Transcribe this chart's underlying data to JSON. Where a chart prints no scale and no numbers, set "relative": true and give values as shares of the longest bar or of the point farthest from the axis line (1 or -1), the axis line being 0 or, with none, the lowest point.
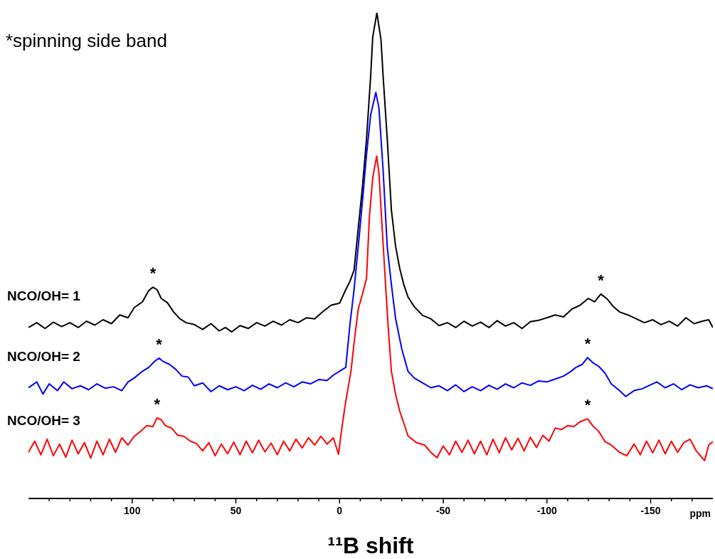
{
  "chart_data": {
    "type": "line",
    "relative": true,
    "xlabel": "¹¹B shift",
    "xlim": [
      150,
      -180
    ],
    "xticks": [
      {
        "value": 140,
        "label": null
      },
      {
        "value": 130,
        "label": null
      },
      {
        "value": 120,
        "label": null
      },
      {
        "value": 110,
        "label": null
      },
      100,
      {
        "value": 90,
        "label": null
      },
      {
        "value": 80,
        "label": null
      },
      {
        "value": 70,
        "label": null
      },
      {
        "value": 60,
        "label": null
      },
      50,
      {
        "value": 40,
        "label": null
      },
      {
        "value": 30,
        "label": null
      },
      {
        "value": 20,
        "label": null
      },
      {
        "value": 10,
        "label": null
      },
      0,
      {
        "value": -10,
        "label": null
      },
      {
        "value": -20,
        "label": null
      },
      {
        "value": -30,
        "label": null
      },
      {
        "value": -40,
        "label": null
      },
      -50,
      {
        "value": -60,
        "label": null
      },
      {
        "value": -70,
        "label": null
      },
      {
        "value": -80,
        "label": null
      },
      {
        "value": -90,
        "label": null
      },
      -100,
      {
        "value": -110,
        "label": null
      },
      {
        "value": -120,
        "label": null
      },
      {
        "value": -130,
        "label": null
      },
      {
        "value": -140,
        "label": null
      },
      -150,
      {
        "value": -160,
        "label": null
      },
      {
        "value": -170,
        "label": null
      }
    ],
    "annotations": [
      "*spinning side band",
      "ppm",
      {
        "text": "*",
        "x": 90,
        "y": 0.435
      },
      {
        "text": "*",
        "x": -126,
        "y": 0.421
      },
      {
        "text": "*",
        "x": 87,
        "y": 0.289
      },
      {
        "text": "*",
        "x": -119.6,
        "y": 0.29
      },
      {
        "text": "*",
        "x": 88,
        "y": 0.166
      },
      {
        "text": "*",
        "x": -119.6,
        "y": 0.164
      }
    ],
    "series": [
      {
        "name": "NCO/OH= 1",
        "color": "#000000",
        "x": [
          150,
          146,
          142,
          138,
          134,
          130,
          126,
          122,
          118,
          114,
          110,
          106,
          102,
          99,
          95,
          92,
          90,
          88,
          86,
          83,
          80,
          77,
          74,
          70,
          66,
          62,
          58,
          55,
          52,
          48,
          44,
          40,
          36,
          32,
          28,
          24,
          20,
          16,
          12,
          8,
          4,
          0,
          -3,
          -5,
          -7,
          -9,
          -11,
          -13,
          -15,
          -16,
          -18,
          -20,
          -21,
          -23,
          -25,
          -27,
          -29,
          -31,
          -33,
          -36,
          -40,
          -44,
          -48,
          -52,
          -56,
          -60,
          -64,
          -68,
          -72,
          -76,
          -80,
          -84,
          -88,
          -92,
          -96,
          -100,
          -104,
          -108,
          -112,
          -116,
          -120,
          -123,
          -126,
          -129,
          -132,
          -135,
          -139,
          -143,
          -147,
          -151,
          -155,
          -159,
          -163,
          -167,
          -171,
          -175,
          -178,
          -180
        ],
        "values": [
          0.352,
          0.362,
          0.35,
          0.363,
          0.354,
          0.362,
          0.352,
          0.365,
          0.357,
          0.368,
          0.36,
          0.378,
          0.372,
          0.393,
          0.405,
          0.428,
          0.435,
          0.43,
          0.412,
          0.403,
          0.384,
          0.37,
          0.362,
          0.358,
          0.348,
          0.36,
          0.345,
          0.352,
          0.343,
          0.356,
          0.35,
          0.362,
          0.355,
          0.365,
          0.357,
          0.368,
          0.362,
          0.372,
          0.37,
          0.385,
          0.398,
          0.402,
          0.43,
          0.447,
          0.47,
          0.556,
          0.64,
          0.74,
          0.87,
          0.95,
          1.0,
          0.944,
          0.87,
          0.74,
          0.594,
          0.52,
          0.474,
          0.44,
          0.415,
          0.395,
          0.377,
          0.37,
          0.356,
          0.362,
          0.352,
          0.365,
          0.355,
          0.363,
          0.352,
          0.366,
          0.355,
          0.362,
          0.35,
          0.364,
          0.367,
          0.372,
          0.378,
          0.374,
          0.39,
          0.398,
          0.412,
          0.405,
          0.421,
          0.411,
          0.395,
          0.384,
          0.378,
          0.37,
          0.362,
          0.368,
          0.358,
          0.365,
          0.355,
          0.372,
          0.36,
          0.365,
          0.368,
          0.352
        ]
      },
      {
        "name": "NCO/OH= 2",
        "color": "#0000ff",
        "x": [
          150,
          146,
          143,
          140,
          136,
          133,
          129,
          125,
          121,
          117,
          113,
          109,
          105,
          102,
          99,
          95,
          92,
          89,
          87,
          85,
          82,
          79,
          76,
          73,
          70,
          66,
          62,
          58,
          54,
          50,
          46,
          42,
          38,
          34,
          30,
          26,
          22,
          18,
          14,
          10,
          6,
          3,
          0,
          -3,
          -5,
          -7,
          -9,
          -11,
          -13,
          -15,
          -17.5,
          -19,
          -21,
          -23,
          -25,
          -27,
          -30,
          -33,
          -36,
          -40,
          -44,
          -48,
          -52,
          -56,
          -60,
          -64,
          -68,
          -72,
          -76,
          -80,
          -84,
          -88,
          -92,
          -96,
          -100,
          -104,
          -108,
          -111,
          -114,
          -117,
          -119.6,
          -122,
          -125,
          -128,
          -131,
          -135,
          -138,
          -142,
          -146,
          -150,
          -153,
          -157,
          -161,
          -165,
          -169,
          -173,
          -177,
          -180
        ],
        "values": [
          0.228,
          0.24,
          0.215,
          0.236,
          0.222,
          0.24,
          0.226,
          0.232,
          0.224,
          0.236,
          0.227,
          0.23,
          0.222,
          0.24,
          0.248,
          0.262,
          0.27,
          0.283,
          0.289,
          0.282,
          0.276,
          0.266,
          0.252,
          0.25,
          0.232,
          0.238,
          0.22,
          0.232,
          0.224,
          0.23,
          0.222,
          0.233,
          0.225,
          0.236,
          0.228,
          0.238,
          0.23,
          0.24,
          0.236,
          0.245,
          0.243,
          0.254,
          0.262,
          0.27,
          0.358,
          0.43,
          0.518,
          0.61,
          0.708,
          0.79,
          0.836,
          0.804,
          0.676,
          0.518,
          0.44,
          0.371,
          0.308,
          0.262,
          0.248,
          0.238,
          0.228,
          0.232,
          0.222,
          0.234,
          0.22,
          0.23,
          0.222,
          0.233,
          0.225,
          0.236,
          0.228,
          0.238,
          0.233,
          0.242,
          0.24,
          0.246,
          0.252,
          0.26,
          0.27,
          0.276,
          0.29,
          0.28,
          0.272,
          0.258,
          0.236,
          0.222,
          0.21,
          0.222,
          0.226,
          0.234,
          0.24,
          0.228,
          0.236,
          0.224,
          0.234,
          0.228,
          0.232,
          0.226
        ]
      },
      {
        "name": "NCO/OH= 3",
        "color": "#ff0000",
        "x": [
          150,
          147,
          144,
          141,
          138,
          135,
          132,
          129,
          126,
          123,
          120,
          117,
          114,
          111,
          108,
          105,
          102,
          99,
          96,
          93,
          90,
          88,
          86,
          84,
          81,
          78,
          75,
          72,
          69,
          66,
          63,
          60,
          57,
          54,
          51,
          48,
          45,
          42,
          39,
          36,
          33,
          30,
          27,
          24,
          21,
          18,
          15,
          12,
          9,
          6,
          3,
          0.5,
          -1,
          -3,
          -5.5,
          -7,
          -9,
          -11,
          -13,
          -14.4,
          -16,
          -17.9,
          -19,
          -20.5,
          -22,
          -23.5,
          -25,
          -27,
          -29,
          -31,
          -33,
          -37,
          -41,
          -44,
          -47,
          -50,
          -53,
          -56,
          -59,
          -62,
          -65,
          -68,
          -71,
          -74,
          -77,
          -80,
          -83,
          -86,
          -89,
          -92,
          -95,
          -98,
          -101,
          -104,
          -107,
          -110,
          -113,
          -116,
          -119.6,
          -122,
          -125,
          -128,
          -131,
          -135,
          -138.5,
          -142,
          -145,
          -148,
          -151,
          -154,
          -157,
          -160,
          -163,
          -166,
          -169,
          -172,
          -176,
          -178,
          -180
        ],
        "values": [
          0.095,
          0.118,
          0.09,
          0.122,
          0.088,
          0.112,
          0.085,
          0.12,
          0.092,
          0.115,
          0.083,
          0.118,
          0.09,
          0.122,
          0.095,
          0.125,
          0.11,
          0.128,
          0.138,
          0.15,
          0.148,
          0.166,
          0.162,
          0.15,
          0.145,
          0.13,
          0.128,
          0.118,
          0.113,
          0.098,
          0.115,
          0.088,
          0.112,
          0.092,
          0.116,
          0.09,
          0.118,
          0.094,
          0.12,
          0.096,
          0.114,
          0.09,
          0.118,
          0.098,
          0.122,
          0.104,
          0.125,
          0.11,
          0.128,
          0.112,
          0.125,
          0.091,
          0.142,
          0.2,
          0.262,
          0.32,
          0.39,
          0.42,
          0.453,
          0.581,
          0.66,
          0.705,
          0.67,
          0.56,
          0.453,
          0.35,
          0.262,
          0.215,
          0.18,
          0.155,
          0.129,
          0.115,
          0.11,
          0.095,
          0.084,
          0.108,
          0.09,
          0.118,
          0.095,
          0.12,
          0.092,
          0.118,
          0.09,
          0.122,
          0.094,
          0.125,
          0.1,
          0.124,
          0.098,
          0.126,
          0.105,
          0.13,
          0.118,
          0.145,
          0.142,
          0.15,
          0.148,
          0.158,
          0.164,
          0.15,
          0.138,
          0.117,
          0.11,
          0.095,
          0.088,
          0.112,
          0.09,
          0.118,
          0.094,
          0.12,
          0.092,
          0.118,
          0.095,
          0.115,
          0.122,
          0.098,
          0.078,
          0.11,
          0.117
        ]
      }
    ]
  }
}
